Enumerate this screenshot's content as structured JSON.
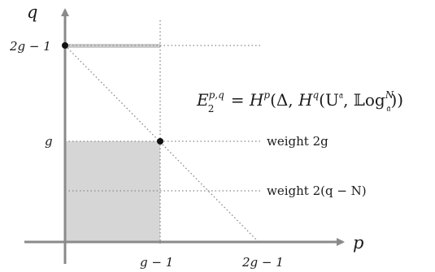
{
  "axes": {
    "x_label": "p",
    "y_label": "q"
  },
  "ticks": {
    "x_g_minus_1": "g − 1",
    "x_2g_minus_1": "2g − 1",
    "y_g": "g",
    "y_2g_minus_1": "2g − 1"
  },
  "lines": {
    "weight_2g": "weight 2g",
    "weight_2q_minus_N": "weight 2(q − N)"
  },
  "formula": {
    "lhs_base": "E",
    "lhs_sub": "2",
    "lhs_sup": "p,q",
    "equals": " = ",
    "H": "H",
    "sup_p": "p",
    "open": "(Δ, ",
    "sup_q": "q",
    "U_open": "(U",
    "U_sup": "𝔞",
    "comma": ", ",
    "Log": "𝕃og",
    "Log_sup": "N",
    "Log_sub": "𝔞",
    "close": "))"
  },
  "colors": {
    "axis": "#888888",
    "shade": "#d6d6d6",
    "dotted": "#888888",
    "point": "#111111"
  }
}
